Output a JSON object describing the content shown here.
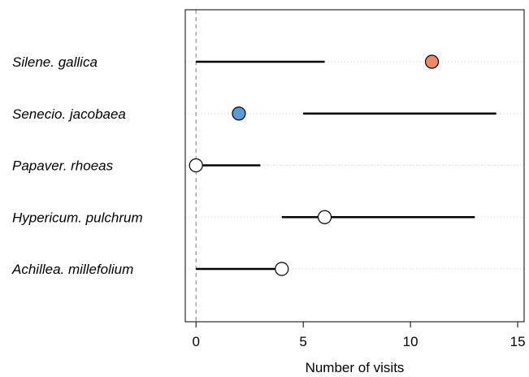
{
  "chart_data": {
    "type": "dot-interval",
    "xlabel": "Number of visits",
    "xlim": [
      -0.5,
      15.3
    ],
    "xticks": [
      0,
      5,
      10,
      15
    ],
    "reference_line_x": 0,
    "categories": [
      "Silene. gallica",
      "Senecio. jacobaea",
      "Papaver. rhoeas",
      "Hypericum. pulchrum",
      "Achillea. millefolium"
    ],
    "intervals": [
      {
        "low": 0,
        "high": 6
      },
      {
        "low": 5,
        "high": 14
      },
      {
        "low": 0,
        "high": 3
      },
      {
        "low": 4,
        "high": 13
      },
      {
        "low": 0,
        "high": 4
      }
    ],
    "points": [
      {
        "value": 11,
        "fill": "#EE8866"
      },
      {
        "value": 2,
        "fill": "#5B9BD5"
      },
      {
        "value": 0,
        "fill": "#FFFFFF"
      },
      {
        "value": 6,
        "fill": "#FFFFFF"
      },
      {
        "value": 4,
        "fill": "#FFFFFF"
      }
    ],
    "grid": "horizontal dotted per category"
  }
}
